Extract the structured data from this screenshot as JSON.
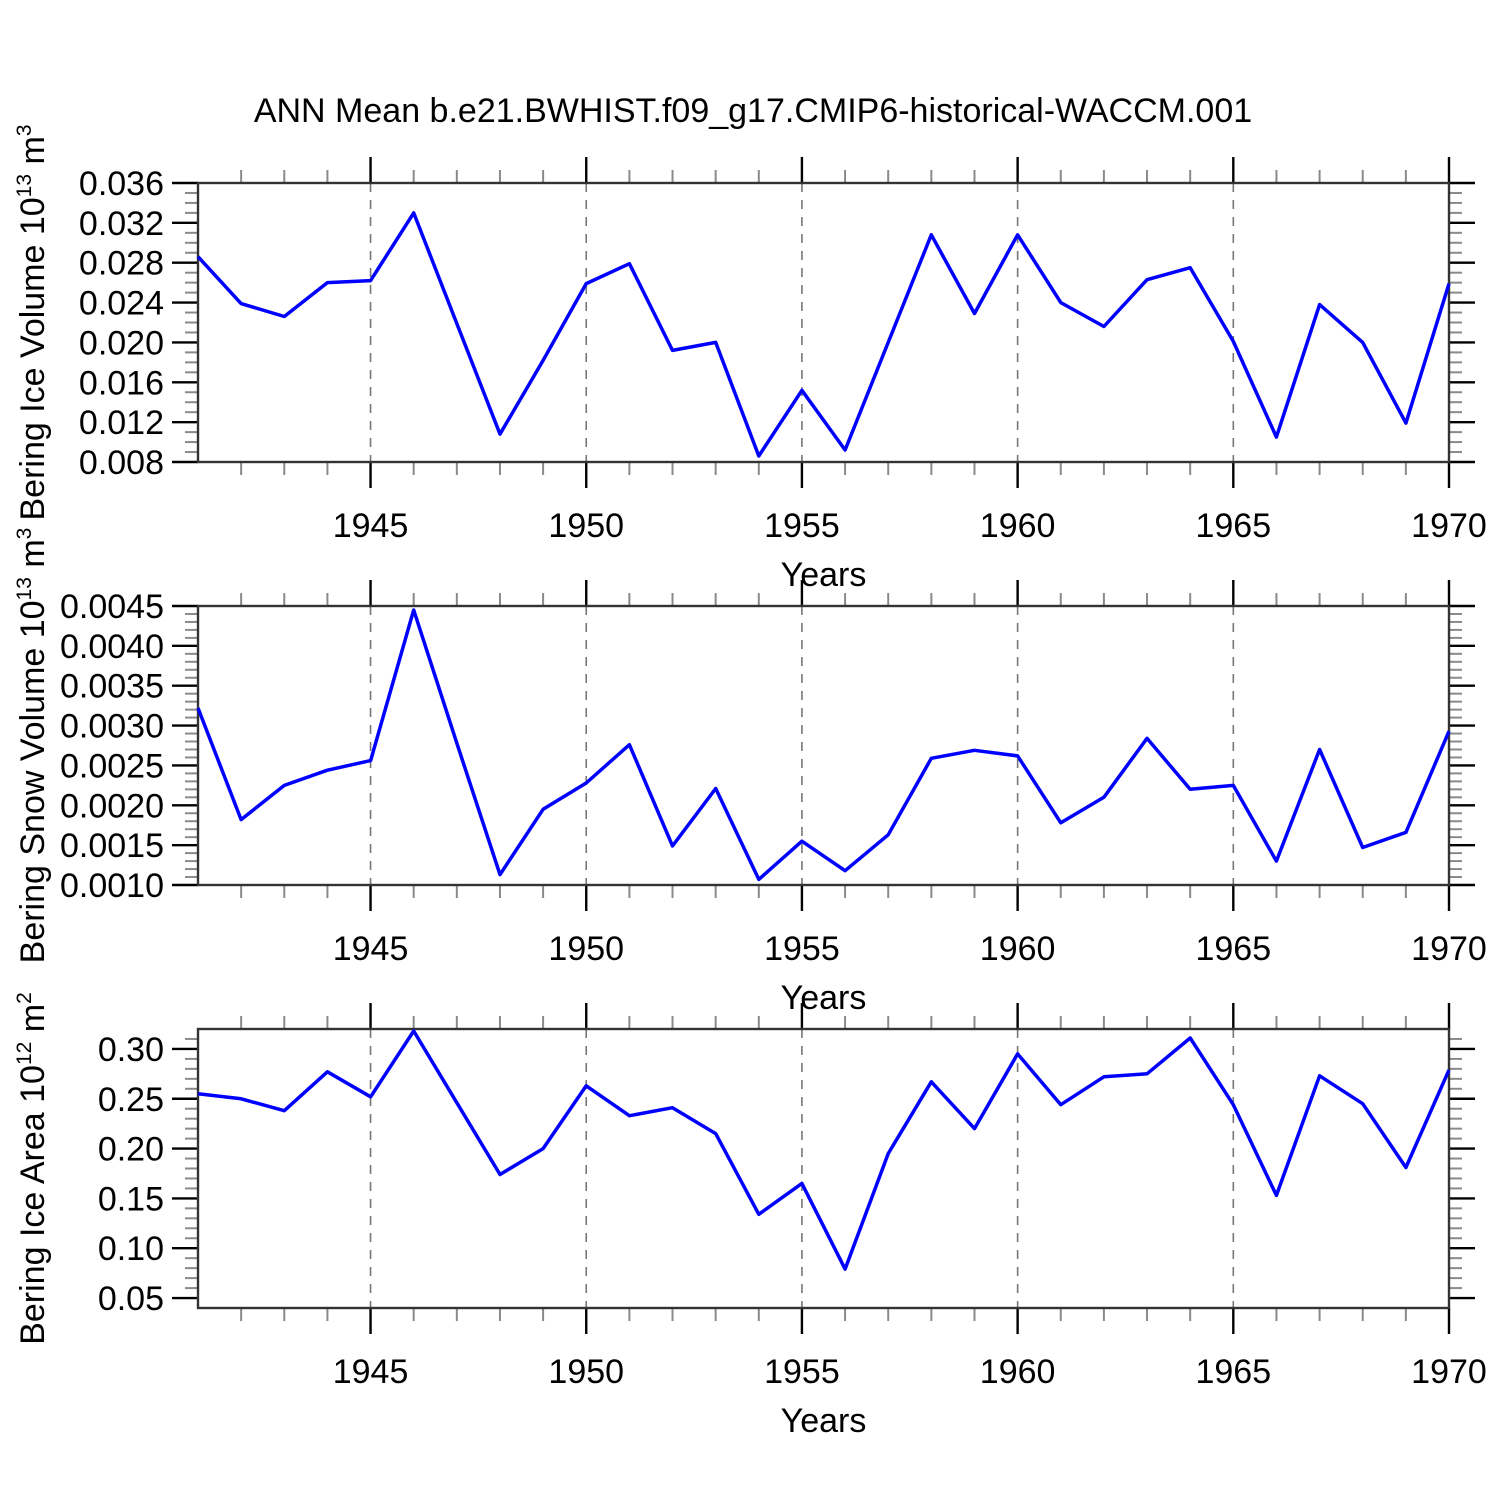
{
  "title": "ANN Mean b.e21.BWHIST.f09_g17.CMIP6-historical-WACCM.001",
  "colors": {
    "line": "#0000ff",
    "axis": "#333333",
    "major_tick": "#000000",
    "minor_tick": "#8a8a8a",
    "grid": "#777777",
    "text": "#000000",
    "background": "#ffffff"
  },
  "chart_data": [
    {
      "type": "line",
      "name": "bering-ice-volume",
      "ylabel_plain": "Bering Ice Volume 10^13 m^3",
      "ylabel_segments": [
        {
          "t": "Bering Ice Volume 10",
          "sup": false
        },
        {
          "t": "13",
          "sup": true
        },
        {
          "t": " m",
          "sup": false
        },
        {
          "t": "3",
          "sup": true
        }
      ],
      "xlabel": "Years",
      "xlim": [
        1941,
        1970
      ],
      "ylim": [
        0.008,
        0.036
      ],
      "x": [
        1941,
        1942,
        1943,
        1944,
        1945,
        1946,
        1947,
        1948,
        1949,
        1950,
        1951,
        1952,
        1953,
        1954,
        1955,
        1956,
        1957,
        1958,
        1959,
        1960,
        1961,
        1962,
        1963,
        1964,
        1965,
        1966,
        1967,
        1968,
        1969,
        1970
      ],
      "y": [
        0.0286,
        0.0239,
        0.0226,
        0.026,
        0.0262,
        0.033,
        0.0219,
        0.0108,
        0.0182,
        0.0259,
        0.0279,
        0.0192,
        0.02,
        0.0086,
        0.0152,
        0.0092,
        0.02,
        0.0308,
        0.0229,
        0.0308,
        0.024,
        0.0216,
        0.0263,
        0.0275,
        0.0201,
        0.0105,
        0.0238,
        0.02,
        0.0119,
        0.0259
      ],
      "yticks": [
        0.008,
        0.012,
        0.016,
        0.02,
        0.024,
        0.028,
        0.032,
        0.036
      ],
      "ytick_labels": [
        "0.008",
        "0.012",
        "0.016",
        "0.020",
        "0.024",
        "0.028",
        "0.032",
        "0.036"
      ],
      "y_minor_step": 0.001,
      "xticks": [
        1945,
        1950,
        1955,
        1960,
        1965,
        1970
      ],
      "xtick_labels": [
        "1945",
        "1950",
        "1955",
        "1960",
        "1965",
        "1970"
      ],
      "grid_x": [
        1945,
        1950,
        1955,
        1960,
        1965
      ]
    },
    {
      "type": "line",
      "name": "bering-snow-volume",
      "ylabel_plain": "Bering Snow Volume 10^13 m^3",
      "ylabel_segments": [
        {
          "t": "Bering Snow Volume 10",
          "sup": false
        },
        {
          "t": "13",
          "sup": true
        },
        {
          "t": " m",
          "sup": false
        },
        {
          "t": "3",
          "sup": true
        }
      ],
      "xlabel": "Years",
      "xlim": [
        1941,
        1970
      ],
      "ylim": [
        0.001,
        0.0045
      ],
      "x": [
        1941,
        1942,
        1943,
        1944,
        1945,
        1946,
        1947,
        1948,
        1949,
        1950,
        1951,
        1952,
        1953,
        1954,
        1955,
        1956,
        1957,
        1958,
        1959,
        1960,
        1961,
        1962,
        1963,
        1964,
        1965,
        1966,
        1967,
        1968,
        1969,
        1970
      ],
      "y": [
        0.00322,
        0.00182,
        0.00225,
        0.00244,
        0.00256,
        0.00445,
        0.00278,
        0.00113,
        0.00195,
        0.00228,
        0.00276,
        0.00149,
        0.00221,
        0.00107,
        0.00155,
        0.00118,
        0.00163,
        0.00259,
        0.00269,
        0.00262,
        0.00178,
        0.0021,
        0.00284,
        0.0022,
        0.00225,
        0.0013,
        0.0027,
        0.00147,
        0.00166,
        0.00293
      ],
      "yticks": [
        0.001,
        0.0015,
        0.002,
        0.0025,
        0.003,
        0.0035,
        0.004,
        0.0045
      ],
      "ytick_labels": [
        "0.0010",
        "0.0015",
        "0.0020",
        "0.0025",
        "0.0030",
        "0.0035",
        "0.0040",
        "0.0045"
      ],
      "y_minor_step": 0.0001,
      "xticks": [
        1945,
        1950,
        1955,
        1960,
        1965,
        1970
      ],
      "xtick_labels": [
        "1945",
        "1950",
        "1955",
        "1960",
        "1965",
        "1970"
      ],
      "grid_x": [
        1945,
        1950,
        1955,
        1960,
        1965
      ]
    },
    {
      "type": "line",
      "name": "bering-ice-area",
      "ylabel_plain": "Bering Ice Area 10^12 m^2",
      "ylabel_segments": [
        {
          "t": "Bering Ice Area 10",
          "sup": false
        },
        {
          "t": "12",
          "sup": true
        },
        {
          "t": " m",
          "sup": false
        },
        {
          "t": "2",
          "sup": true
        }
      ],
      "xlabel": "Years",
      "xlim": [
        1941,
        1970
      ],
      "ylim": [
        0.04,
        0.32
      ],
      "x": [
        1941,
        1942,
        1943,
        1944,
        1945,
        1946,
        1947,
        1948,
        1949,
        1950,
        1951,
        1952,
        1953,
        1954,
        1955,
        1956,
        1957,
        1958,
        1959,
        1960,
        1961,
        1962,
        1963,
        1964,
        1965,
        1966,
        1967,
        1968,
        1969,
        1970
      ],
      "y": [
        0.255,
        0.25,
        0.238,
        0.277,
        0.252,
        0.318,
        0.246,
        0.174,
        0.2,
        0.263,
        0.233,
        0.241,
        0.215,
        0.134,
        0.165,
        0.079,
        0.195,
        0.267,
        0.22,
        0.295,
        0.244,
        0.272,
        0.275,
        0.311,
        0.244,
        0.153,
        0.273,
        0.245,
        0.181,
        0.279
      ],
      "yticks": [
        0.05,
        0.1,
        0.15,
        0.2,
        0.25,
        0.3
      ],
      "ytick_labels": [
        "0.05",
        "0.10",
        "0.15",
        "0.20",
        "0.25",
        "0.30"
      ],
      "y_minor_step": 0.01,
      "xticks": [
        1945,
        1950,
        1955,
        1960,
        1965,
        1970
      ],
      "xtick_labels": [
        "1945",
        "1950",
        "1955",
        "1960",
        "1965",
        "1970"
      ],
      "grid_x": [
        1945,
        1950,
        1955,
        1960,
        1965
      ]
    }
  ]
}
